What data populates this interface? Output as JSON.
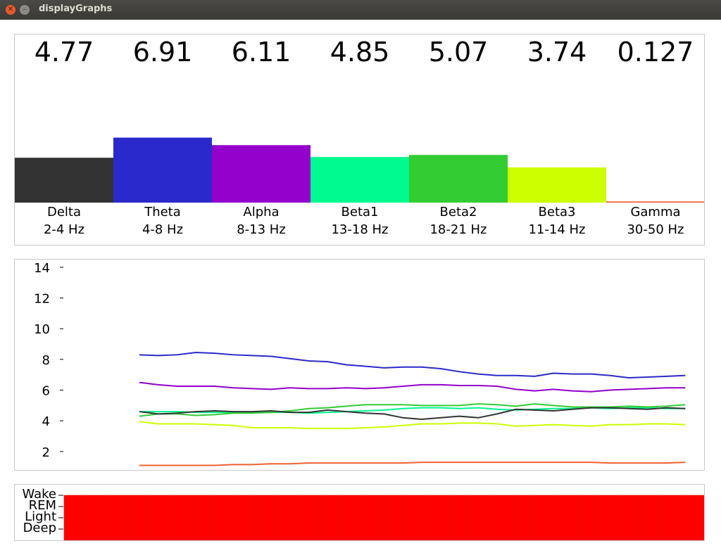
{
  "window": {
    "title": "displayGraphs",
    "close_icon": "close-icon",
    "minimize_icon": "minimize-icon"
  },
  "bands": [
    {
      "name": "Delta",
      "range": "2-4 Hz",
      "value": "4.77",
      "color": "#333333"
    },
    {
      "name": "Theta",
      "range": "4-8 Hz",
      "value": "6.91",
      "color": "#2a2acc"
    },
    {
      "name": "Alpha",
      "range": "8-13 Hz",
      "value": "6.11",
      "color": "#9400cc"
    },
    {
      "name": "Beta1",
      "range": "13-18 Hz",
      "value": "4.85",
      "color": "#00fa90"
    },
    {
      "name": "Beta2",
      "range": "18-21 Hz",
      "value": "5.07",
      "color": "#33cc33"
    },
    {
      "name": "Beta3",
      "range": "11-14 Hz",
      "value": "3.74",
      "color": "#ccff00"
    },
    {
      "name": "Gamma",
      "range": "30-50 Hz",
      "value": "0.127",
      "color": "#f06030"
    }
  ],
  "chart_data": [
    {
      "type": "bar",
      "categories": [
        "Delta",
        "Theta",
        "Alpha",
        "Beta1",
        "Beta2",
        "Beta3",
        "Gamma"
      ],
      "category_ranges": [
        "2-4 Hz",
        "4-8 Hz",
        "8-13 Hz",
        "13-18 Hz",
        "18-21 Hz",
        "11-14 Hz",
        "30-50 Hz"
      ],
      "values": [
        4.77,
        6.91,
        6.11,
        4.85,
        5.07,
        3.74,
        0.127
      ],
      "ylim": [
        0,
        17.2
      ],
      "grid": false
    },
    {
      "type": "line",
      "yticks": [
        2,
        4,
        6,
        8,
        10,
        12,
        14
      ],
      "ylim": [
        0.8,
        14.5
      ],
      "xlim": [
        0,
        34
      ],
      "grid": false,
      "series": [
        {
          "color": "#2a2acc",
          "values": [
            8.3,
            8.25,
            8.3,
            8.45,
            8.4,
            8.3,
            8.25,
            8.2,
            8.05,
            7.9,
            7.85,
            7.65,
            7.55,
            7.45,
            7.5,
            7.5,
            7.4,
            7.2,
            7.05,
            6.95,
            6.95,
            6.9,
            7.1,
            7.05,
            7.05,
            6.95,
            6.8,
            6.85,
            6.9,
            6.95
          ]
        },
        {
          "color": "#9400cc",
          "values": [
            6.5,
            6.35,
            6.25,
            6.25,
            6.25,
            6.15,
            6.1,
            6.05,
            6.15,
            6.1,
            6.1,
            6.15,
            6.1,
            6.15,
            6.25,
            6.35,
            6.35,
            6.3,
            6.3,
            6.25,
            6.05,
            5.95,
            6.05,
            5.95,
            5.9,
            6.0,
            6.05,
            6.1,
            6.15,
            6.15
          ]
        },
        {
          "color": "#00fa90",
          "values": [
            4.6,
            4.6,
            4.6,
            4.55,
            4.55,
            4.55,
            4.55,
            4.55,
            4.55,
            4.5,
            4.55,
            4.6,
            4.65,
            4.7,
            4.8,
            4.85,
            4.85,
            4.8,
            4.85,
            4.75,
            4.7,
            4.75,
            4.8,
            4.8,
            4.85,
            4.8,
            4.85,
            4.85,
            4.8,
            4.8
          ]
        },
        {
          "color": "#33cc33",
          "values": [
            4.3,
            4.45,
            4.45,
            4.35,
            4.4,
            4.5,
            4.5,
            4.55,
            4.65,
            4.8,
            4.85,
            4.95,
            5.05,
            5.05,
            5.05,
            5.0,
            5.0,
            5.0,
            5.1,
            5.05,
            4.95,
            5.1,
            5.0,
            4.9,
            4.9,
            4.9,
            4.95,
            4.9,
            4.95,
            5.05
          ]
        },
        {
          "color": "#333333",
          "values": [
            4.6,
            4.45,
            4.5,
            4.6,
            4.65,
            4.6,
            4.6,
            4.65,
            4.55,
            4.55,
            4.7,
            4.6,
            4.5,
            4.45,
            4.2,
            4.1,
            4.2,
            4.3,
            4.2,
            4.45,
            4.75,
            4.7,
            4.65,
            4.75,
            4.85,
            4.85,
            4.8,
            4.75,
            4.85,
            4.8
          ]
        },
        {
          "color": "#ccff00",
          "values": [
            3.95,
            3.8,
            3.8,
            3.8,
            3.75,
            3.7,
            3.55,
            3.55,
            3.55,
            3.5,
            3.5,
            3.5,
            3.55,
            3.6,
            3.7,
            3.8,
            3.8,
            3.85,
            3.85,
            3.8,
            3.65,
            3.7,
            3.75,
            3.7,
            3.65,
            3.75,
            3.75,
            3.8,
            3.8,
            3.75
          ]
        },
        {
          "color": "#f06030",
          "values": [
            1.1,
            1.1,
            1.1,
            1.1,
            1.1,
            1.15,
            1.15,
            1.2,
            1.2,
            1.25,
            1.25,
            1.25,
            1.25,
            1.25,
            1.25,
            1.3,
            1.3,
            1.3,
            1.3,
            1.3,
            1.3,
            1.3,
            1.3,
            1.3,
            1.3,
            1.25,
            1.25,
            1.25,
            1.25,
            1.3
          ]
        }
      ]
    },
    {
      "type": "heatmap",
      "ytick_labels": [
        "Wake",
        "REM",
        "Light",
        "Deep"
      ],
      "columns": 30,
      "state_color": "#ff0000"
    }
  ]
}
